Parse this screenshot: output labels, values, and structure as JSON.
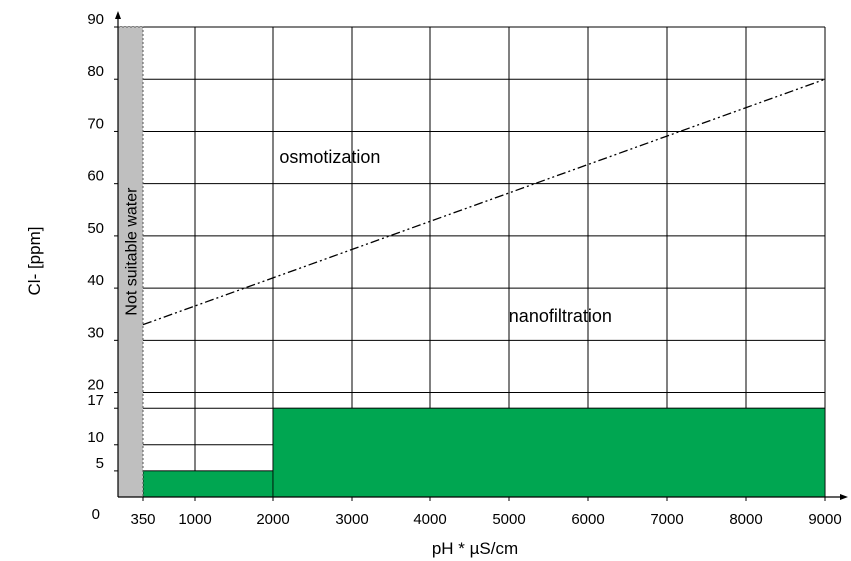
{
  "chart_data": {
    "type": "area",
    "xlabel": "pH * µS/cm",
    "ylabel": "Cl- [ppm]",
    "x_ticks": [
      {
        "value": 350,
        "label": "350"
      },
      {
        "value": 1000,
        "label": "1000"
      },
      {
        "value": 2000,
        "label": "2000"
      },
      {
        "value": 3000,
        "label": "3000"
      },
      {
        "value": 4000,
        "label": "4000"
      },
      {
        "value": 5000,
        "label": "5000"
      },
      {
        "value": 6000,
        "label": "6000"
      },
      {
        "value": 7000,
        "label": "7000"
      },
      {
        "value": 8000,
        "label": "8000"
      },
      {
        "value": 9000,
        "label": "9000"
      }
    ],
    "y_ticks": [
      {
        "value": 0,
        "label": "0"
      },
      {
        "value": 5,
        "label": "5"
      },
      {
        "value": 10,
        "label": "10"
      },
      {
        "value": 17,
        "label": "17"
      },
      {
        "value": 20,
        "label": "20"
      },
      {
        "value": 30,
        "label": "30"
      },
      {
        "value": 40,
        "label": "40"
      },
      {
        "value": 50,
        "label": "50"
      },
      {
        "value": 60,
        "label": "60"
      },
      {
        "value": 70,
        "label": "70"
      },
      {
        "value": 80,
        "label": "80"
      },
      {
        "value": 90,
        "label": "90"
      }
    ],
    "xlim": [
      0,
      9000
    ],
    "ylim": [
      0,
      90
    ],
    "grid": true,
    "not_suitable_band": {
      "x": [
        0,
        350
      ],
      "label": "Not suitable water",
      "color": "#bfbfbf"
    },
    "boundary_line": {
      "style": "dash-dot-dot",
      "x": [
        350,
        9000
      ],
      "y": [
        33,
        80
      ]
    },
    "green_regions": {
      "color": "#00a651",
      "steps": [
        {
          "x_start": 350,
          "x_end": 2000,
          "y": 5
        },
        {
          "x_start": 2000,
          "x_end": 9000,
          "y": 17
        }
      ]
    },
    "annotations": [
      {
        "text": "osmotization",
        "x": 2080,
        "y": 64
      },
      {
        "text": "nanofiltration",
        "x": 5650,
        "y": 33.5
      }
    ]
  }
}
